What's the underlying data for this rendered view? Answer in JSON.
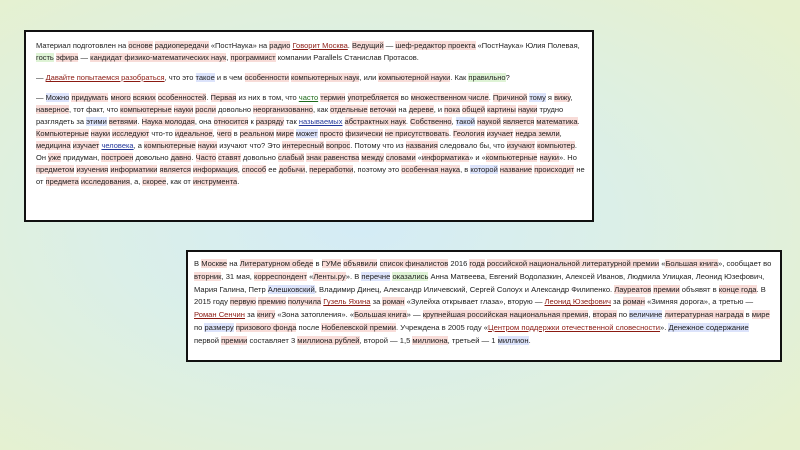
{
  "panel1": {
    "para1": [
      {
        "t": "Материал подготовлен на "
      },
      {
        "t": "основе",
        "c": "r"
      },
      {
        "t": " "
      },
      {
        "t": "радиопередачи",
        "c": "r"
      },
      {
        "t": " «ПостНаука» на "
      },
      {
        "t": "радио",
        "c": "r"
      },
      {
        "t": " "
      },
      {
        "t": "Говорит Москва",
        "c": "dr"
      },
      {
        "t": ". "
      },
      {
        "t": "Ведущий",
        "c": "r"
      },
      {
        "t": " — "
      },
      {
        "t": "шеф-редактор проекта",
        "c": "r"
      },
      {
        "t": " «ПостНаука» Юлия Полевая, "
      },
      {
        "t": "гость",
        "c": "g"
      },
      {
        "t": " "
      },
      {
        "t": "эфира",
        "c": "r"
      },
      {
        "t": " — "
      },
      {
        "t": "кандидат физико-математических наук",
        "c": "r"
      },
      {
        "t": ", "
      },
      {
        "t": "программист",
        "c": "r"
      },
      {
        "t": " компании Parallels Станислав Протасов."
      }
    ],
    "para2": [
      {
        "t": "— "
      },
      {
        "t": "Давайте попытаемся разобраться",
        "c": "dr"
      },
      {
        "t": ", что это "
      },
      {
        "t": "такое",
        "c": "b"
      },
      {
        "t": " и в чем "
      },
      {
        "t": "особенности",
        "c": "r"
      },
      {
        "t": " "
      },
      {
        "t": "компьютерных наук",
        "c": "r"
      },
      {
        "t": ", или "
      },
      {
        "t": "компьютерной науки",
        "c": "r"
      },
      {
        "t": ". Как "
      },
      {
        "t": "правильно",
        "c": "g"
      },
      {
        "t": "?"
      }
    ],
    "para3": [
      {
        "t": "— "
      },
      {
        "t": "Можно",
        "c": "b"
      },
      {
        "t": " "
      },
      {
        "t": "придумать",
        "c": "r"
      },
      {
        "t": " "
      },
      {
        "t": "много",
        "c": "r"
      },
      {
        "t": " "
      },
      {
        "t": "всяких",
        "c": "r"
      },
      {
        "t": " "
      },
      {
        "t": "особенностей",
        "c": "r"
      },
      {
        "t": ". "
      },
      {
        "t": "Первая",
        "c": "r"
      },
      {
        "t": " из них в том, что "
      },
      {
        "t": "часто",
        "c": "dg"
      },
      {
        "t": " "
      },
      {
        "t": "термин",
        "c": "r"
      },
      {
        "t": " "
      },
      {
        "t": "употребляется",
        "c": "r"
      },
      {
        "t": " во "
      },
      {
        "t": "множественном числе",
        "c": "r"
      },
      {
        "t": ". "
      },
      {
        "t": "Причиной",
        "c": "r"
      },
      {
        "t": " "
      },
      {
        "t": "тому",
        "c": "b"
      },
      {
        "t": " я "
      },
      {
        "t": "вижу",
        "c": "r"
      },
      {
        "t": ", "
      },
      {
        "t": "наверное",
        "c": "r"
      },
      {
        "t": ", тот факт, что "
      },
      {
        "t": "компьютерные",
        "c": "r"
      },
      {
        "t": " "
      },
      {
        "t": "науки",
        "c": "r"
      },
      {
        "t": " "
      },
      {
        "t": "росли",
        "c": "r"
      },
      {
        "t": " довольно "
      },
      {
        "t": "неорганизованно",
        "c": "r"
      },
      {
        "t": ", как "
      },
      {
        "t": "отдельные",
        "c": "r"
      },
      {
        "t": " "
      },
      {
        "t": "веточки",
        "c": "r"
      },
      {
        "t": " на "
      },
      {
        "t": "дереве",
        "c": "r"
      },
      {
        "t": ", и "
      },
      {
        "t": "пока",
        "c": "r"
      },
      {
        "t": " "
      },
      {
        "t": "общей",
        "c": "r"
      },
      {
        "t": " "
      },
      {
        "t": "картины",
        "c": "r"
      },
      {
        "t": " "
      },
      {
        "t": "науки",
        "c": "r"
      },
      {
        "t": " трудно разглядеть за "
      },
      {
        "t": "этими",
        "c": "b"
      },
      {
        "t": " "
      },
      {
        "t": "ветвями",
        "c": "r"
      },
      {
        "t": ". "
      },
      {
        "t": "Наука молодая",
        "c": "r"
      },
      {
        "t": ", она "
      },
      {
        "t": "относится",
        "c": "r"
      },
      {
        "t": " к "
      },
      {
        "t": "разряду",
        "c": "r"
      },
      {
        "t": " так "
      },
      {
        "t": "называемых",
        "c": "db"
      },
      {
        "t": " "
      },
      {
        "t": "абстрактных наук",
        "c": "r"
      },
      {
        "t": ". "
      },
      {
        "t": "Собственно",
        "c": "r"
      },
      {
        "t": ", "
      },
      {
        "t": "такой",
        "c": "b"
      },
      {
        "t": " "
      },
      {
        "t": "наукой",
        "c": "r"
      },
      {
        "t": " "
      },
      {
        "t": "является",
        "c": "r"
      },
      {
        "t": " "
      },
      {
        "t": "математика",
        "c": "r"
      },
      {
        "t": ". "
      },
      {
        "t": "Компьютерные",
        "c": "r"
      },
      {
        "t": " "
      },
      {
        "t": "науки",
        "c": "r"
      },
      {
        "t": " "
      },
      {
        "t": "исследуют",
        "c": "r"
      },
      {
        "t": " что-то "
      },
      {
        "t": "идеальное",
        "c": "r"
      },
      {
        "t": ", "
      },
      {
        "t": "чего",
        "c": "r"
      },
      {
        "t": " в "
      },
      {
        "t": "реальном",
        "c": "r"
      },
      {
        "t": " "
      },
      {
        "t": "мире",
        "c": "r"
      },
      {
        "t": " "
      },
      {
        "t": "может",
        "c": "b"
      },
      {
        "t": " "
      },
      {
        "t": "просто",
        "c": "r"
      },
      {
        "t": " "
      },
      {
        "t": "физически",
        "c": "r"
      },
      {
        "t": " "
      },
      {
        "t": "не присутствовать",
        "c": "r"
      },
      {
        "t": ". "
      },
      {
        "t": "Геология",
        "c": "r"
      },
      {
        "t": " "
      },
      {
        "t": "изучает",
        "c": "r"
      },
      {
        "t": " "
      },
      {
        "t": "недра земли",
        "c": "r"
      },
      {
        "t": ", "
      },
      {
        "t": "медицина",
        "c": "r"
      },
      {
        "t": " "
      },
      {
        "t": "изучает",
        "c": "r"
      },
      {
        "t": " "
      },
      {
        "t": "человека",
        "c": "db"
      },
      {
        "t": ", а "
      },
      {
        "t": "компьютерные",
        "c": "r"
      },
      {
        "t": " "
      },
      {
        "t": "науки",
        "c": "r"
      },
      {
        "t": " изучают что? Это "
      },
      {
        "t": "интересный",
        "c": "r"
      },
      {
        "t": " "
      },
      {
        "t": "вопрос",
        "c": "r"
      },
      {
        "t": ". Потому что из "
      },
      {
        "t": "названия",
        "c": "r"
      },
      {
        "t": " следовало бы, что "
      },
      {
        "t": "изучают",
        "c": "r"
      },
      {
        "t": " "
      },
      {
        "t": "компьютер",
        "c": "r"
      },
      {
        "t": ". Он "
      },
      {
        "t": "уже",
        "c": "r"
      },
      {
        "t": " придуман, "
      },
      {
        "t": "построен",
        "c": "r"
      },
      {
        "t": " довольно "
      },
      {
        "t": "давно",
        "c": "r"
      },
      {
        "t": ". "
      },
      {
        "t": "Часто",
        "c": "r"
      },
      {
        "t": " "
      },
      {
        "t": "ставят",
        "c": "r"
      },
      {
        "t": " довольно "
      },
      {
        "t": "слабый",
        "c": "r"
      },
      {
        "t": " "
      },
      {
        "t": "знак равенства",
        "c": "r"
      },
      {
        "t": " "
      },
      {
        "t": "между",
        "c": "r"
      },
      {
        "t": " "
      },
      {
        "t": "словами",
        "c": "r"
      },
      {
        "t": " «"
      },
      {
        "t": "информатика",
        "c": "r"
      },
      {
        "t": "» и «"
      },
      {
        "t": "компьютерные",
        "c": "r"
      },
      {
        "t": " "
      },
      {
        "t": "науки",
        "c": "r"
      },
      {
        "t": "». Но "
      },
      {
        "t": "предметом",
        "c": "r"
      },
      {
        "t": " "
      },
      {
        "t": "изучения",
        "c": "r"
      },
      {
        "t": " "
      },
      {
        "t": "информатики",
        "c": "r"
      },
      {
        "t": " "
      },
      {
        "t": "является",
        "c": "r"
      },
      {
        "t": " "
      },
      {
        "t": "информация",
        "c": "r"
      },
      {
        "t": ", "
      },
      {
        "t": "способ",
        "c": "r"
      },
      {
        "t": " ее "
      },
      {
        "t": "добычи",
        "c": "r"
      },
      {
        "t": ", "
      },
      {
        "t": "переработки",
        "c": "r"
      },
      {
        "t": ", поэтому это "
      },
      {
        "t": "особенная наука",
        "c": "r"
      },
      {
        "t": ", в "
      },
      {
        "t": "которой",
        "c": "b"
      },
      {
        "t": " "
      },
      {
        "t": "название",
        "c": "r"
      },
      {
        "t": " "
      },
      {
        "t": "происходит",
        "c": "r"
      },
      {
        "t": " не от "
      },
      {
        "t": "предмета",
        "c": "r"
      },
      {
        "t": " "
      },
      {
        "t": "исследования",
        "c": "r"
      },
      {
        "t": ", а, "
      },
      {
        "t": "скорее",
        "c": "r"
      },
      {
        "t": ", как от "
      },
      {
        "t": "инструмента",
        "c": "r"
      },
      {
        "t": "."
      }
    ]
  },
  "panel2": {
    "para1": [
      {
        "t": "В "
      },
      {
        "t": "Москве",
        "c": "r"
      },
      {
        "t": " на "
      },
      {
        "t": "Литературном обеде",
        "c": "r"
      },
      {
        "t": " в "
      },
      {
        "t": "ГУМе",
        "c": "r"
      },
      {
        "t": " "
      },
      {
        "t": "объявили",
        "c": "r"
      },
      {
        "t": " "
      },
      {
        "t": "список финалистов",
        "c": "r"
      },
      {
        "t": " 2016 "
      },
      {
        "t": "года",
        "c": "r"
      },
      {
        "t": " "
      },
      {
        "t": "российской национальной литературной премии",
        "c": "r"
      },
      {
        "t": " «"
      },
      {
        "t": "Большая книга",
        "c": "r"
      },
      {
        "t": "», сообщает во "
      },
      {
        "t": "вторник",
        "c": "r"
      },
      {
        "t": ", 31 мая, "
      },
      {
        "t": "корреспондент",
        "c": "r"
      },
      {
        "t": " «"
      },
      {
        "t": "Ленты.ру",
        "c": "r"
      },
      {
        "t": "». В "
      },
      {
        "t": "перечне",
        "c": "b"
      },
      {
        "t": " "
      },
      {
        "t": "оказались",
        "c": "g"
      },
      {
        "t": " Анна Матвеева, Евгений Водолазкин, Алексей Иванов, Людмила Улицкая, Леонид Юзефович, Мария Галина, Петр "
      },
      {
        "t": "Алешковский",
        "c": "b"
      },
      {
        "t": ", Владимир Динец, Александр Иличевский, Сергей Солоух и Александр Филипенко. "
      },
      {
        "t": "Лауреатов",
        "c": "r"
      },
      {
        "t": " "
      },
      {
        "t": "премии",
        "c": "r"
      },
      {
        "t": " объявят в "
      },
      {
        "t": "конце года",
        "c": "r"
      },
      {
        "t": ". В 2015 году "
      },
      {
        "t": "первую",
        "c": "r"
      },
      {
        "t": " "
      },
      {
        "t": "премию",
        "c": "r"
      },
      {
        "t": " "
      },
      {
        "t": "получила",
        "c": "r"
      },
      {
        "t": " "
      },
      {
        "t": "Гузель Яхина",
        "c": "dr"
      },
      {
        "t": " за "
      },
      {
        "t": "роман",
        "c": "r"
      },
      {
        "t": " «Зулейха открывает глаза», вторую — "
      },
      {
        "t": "Леонид Юзефович",
        "c": "dr"
      },
      {
        "t": " за "
      },
      {
        "t": "роман",
        "c": "r"
      },
      {
        "t": " «Зимняя дорога», а третью — "
      },
      {
        "t": "Роман Сенчин",
        "c": "dr"
      },
      {
        "t": " за "
      },
      {
        "t": "книгу",
        "c": "r"
      },
      {
        "t": " «Зона затопления». «"
      },
      {
        "t": "Большая книга",
        "c": "r"
      },
      {
        "t": "» — "
      },
      {
        "t": "крупнейшая российская национальная премия",
        "c": "r"
      },
      {
        "t": ", "
      },
      {
        "t": "вторая",
        "c": "r"
      },
      {
        "t": " по "
      },
      {
        "t": "величине",
        "c": "b"
      },
      {
        "t": " "
      },
      {
        "t": "литературная награда",
        "c": "r"
      },
      {
        "t": " в "
      },
      {
        "t": "мире",
        "c": "r"
      },
      {
        "t": " по "
      },
      {
        "t": "размеру",
        "c": "b"
      },
      {
        "t": " "
      },
      {
        "t": "призового фонда",
        "c": "r"
      },
      {
        "t": " после "
      },
      {
        "t": "Нобелевской премии",
        "c": "r"
      },
      {
        "t": ". Учреждена в 2005 году «"
      },
      {
        "t": "Центром поддержки отечественной словесности",
        "c": "dr"
      },
      {
        "t": "». "
      },
      {
        "t": "Денежное содержание",
        "c": "b"
      },
      {
        "t": " первой "
      },
      {
        "t": "премии",
        "c": "r"
      },
      {
        "t": " составляет 3 "
      },
      {
        "t": "миллиона рублей",
        "c": "r"
      },
      {
        "t": ", второй — 1,5 "
      },
      {
        "t": "миллиона",
        "c": "r"
      },
      {
        "t": ", третьей — 1 "
      },
      {
        "t": "миллион",
        "c": "b"
      },
      {
        "t": "."
      }
    ]
  },
  "colors": {
    "highlight_red": "#f8dcd8",
    "highlight_green": "#def3d5",
    "highlight_blue": "#dce3fb",
    "text_dark_red": "#8b1a12",
    "text_dark_green": "#1e6a1a",
    "text_dark_blue": "#23389a"
  }
}
